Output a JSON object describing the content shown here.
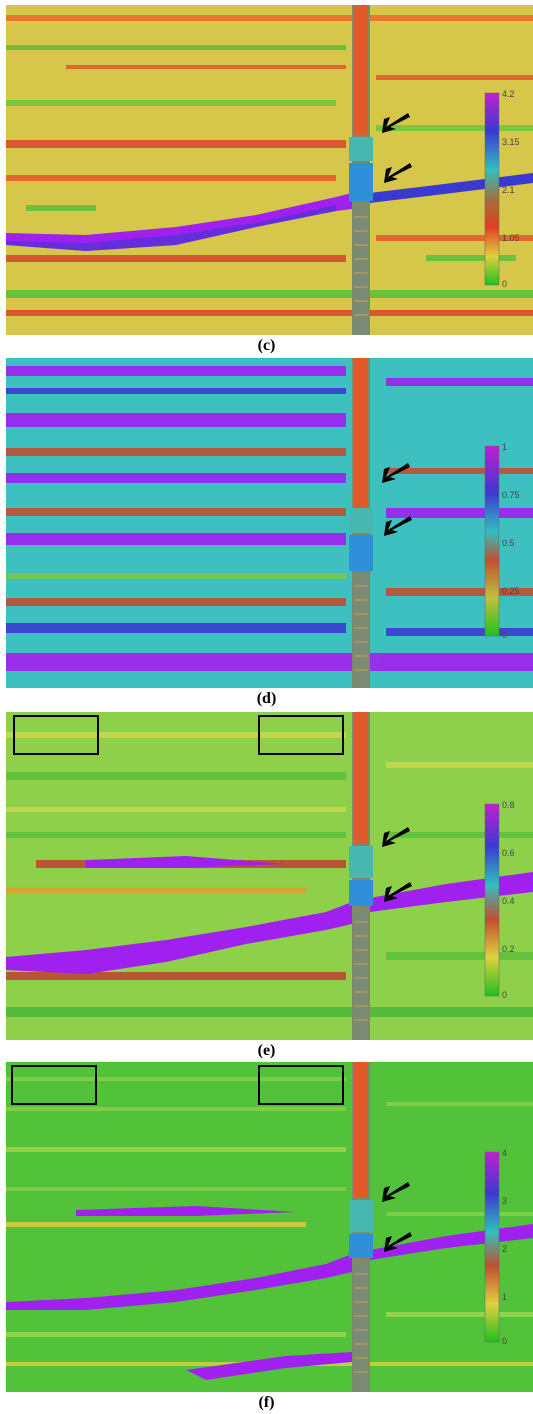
{
  "panels": [
    {
      "caption": "(c)",
      "background": "#d9c840",
      "anomaly_color": "#a020f0",
      "scale_ticks": [
        "4.2",
        "3.15",
        "2.1",
        "1.05",
        "0"
      ]
    },
    {
      "caption": "(d)",
      "background": "#3ec9c8",
      "anomaly_color": "#a020f0",
      "scale_ticks": [
        "1",
        "0.75",
        "0.5",
        "0.25",
        "0"
      ]
    },
    {
      "caption": "(e)",
      "background": "#8fd34a",
      "anomaly_color": "#a020f0",
      "scale_ticks": [
        "0.8",
        "0.6",
        "0.4",
        "0.2",
        "0"
      ]
    },
    {
      "caption": "(f)",
      "background": "#54c43a",
      "anomaly_color": "#a020f0",
      "scale_ticks": [
        "4",
        "3",
        "2",
        "1",
        "0"
      ]
    }
  ]
}
